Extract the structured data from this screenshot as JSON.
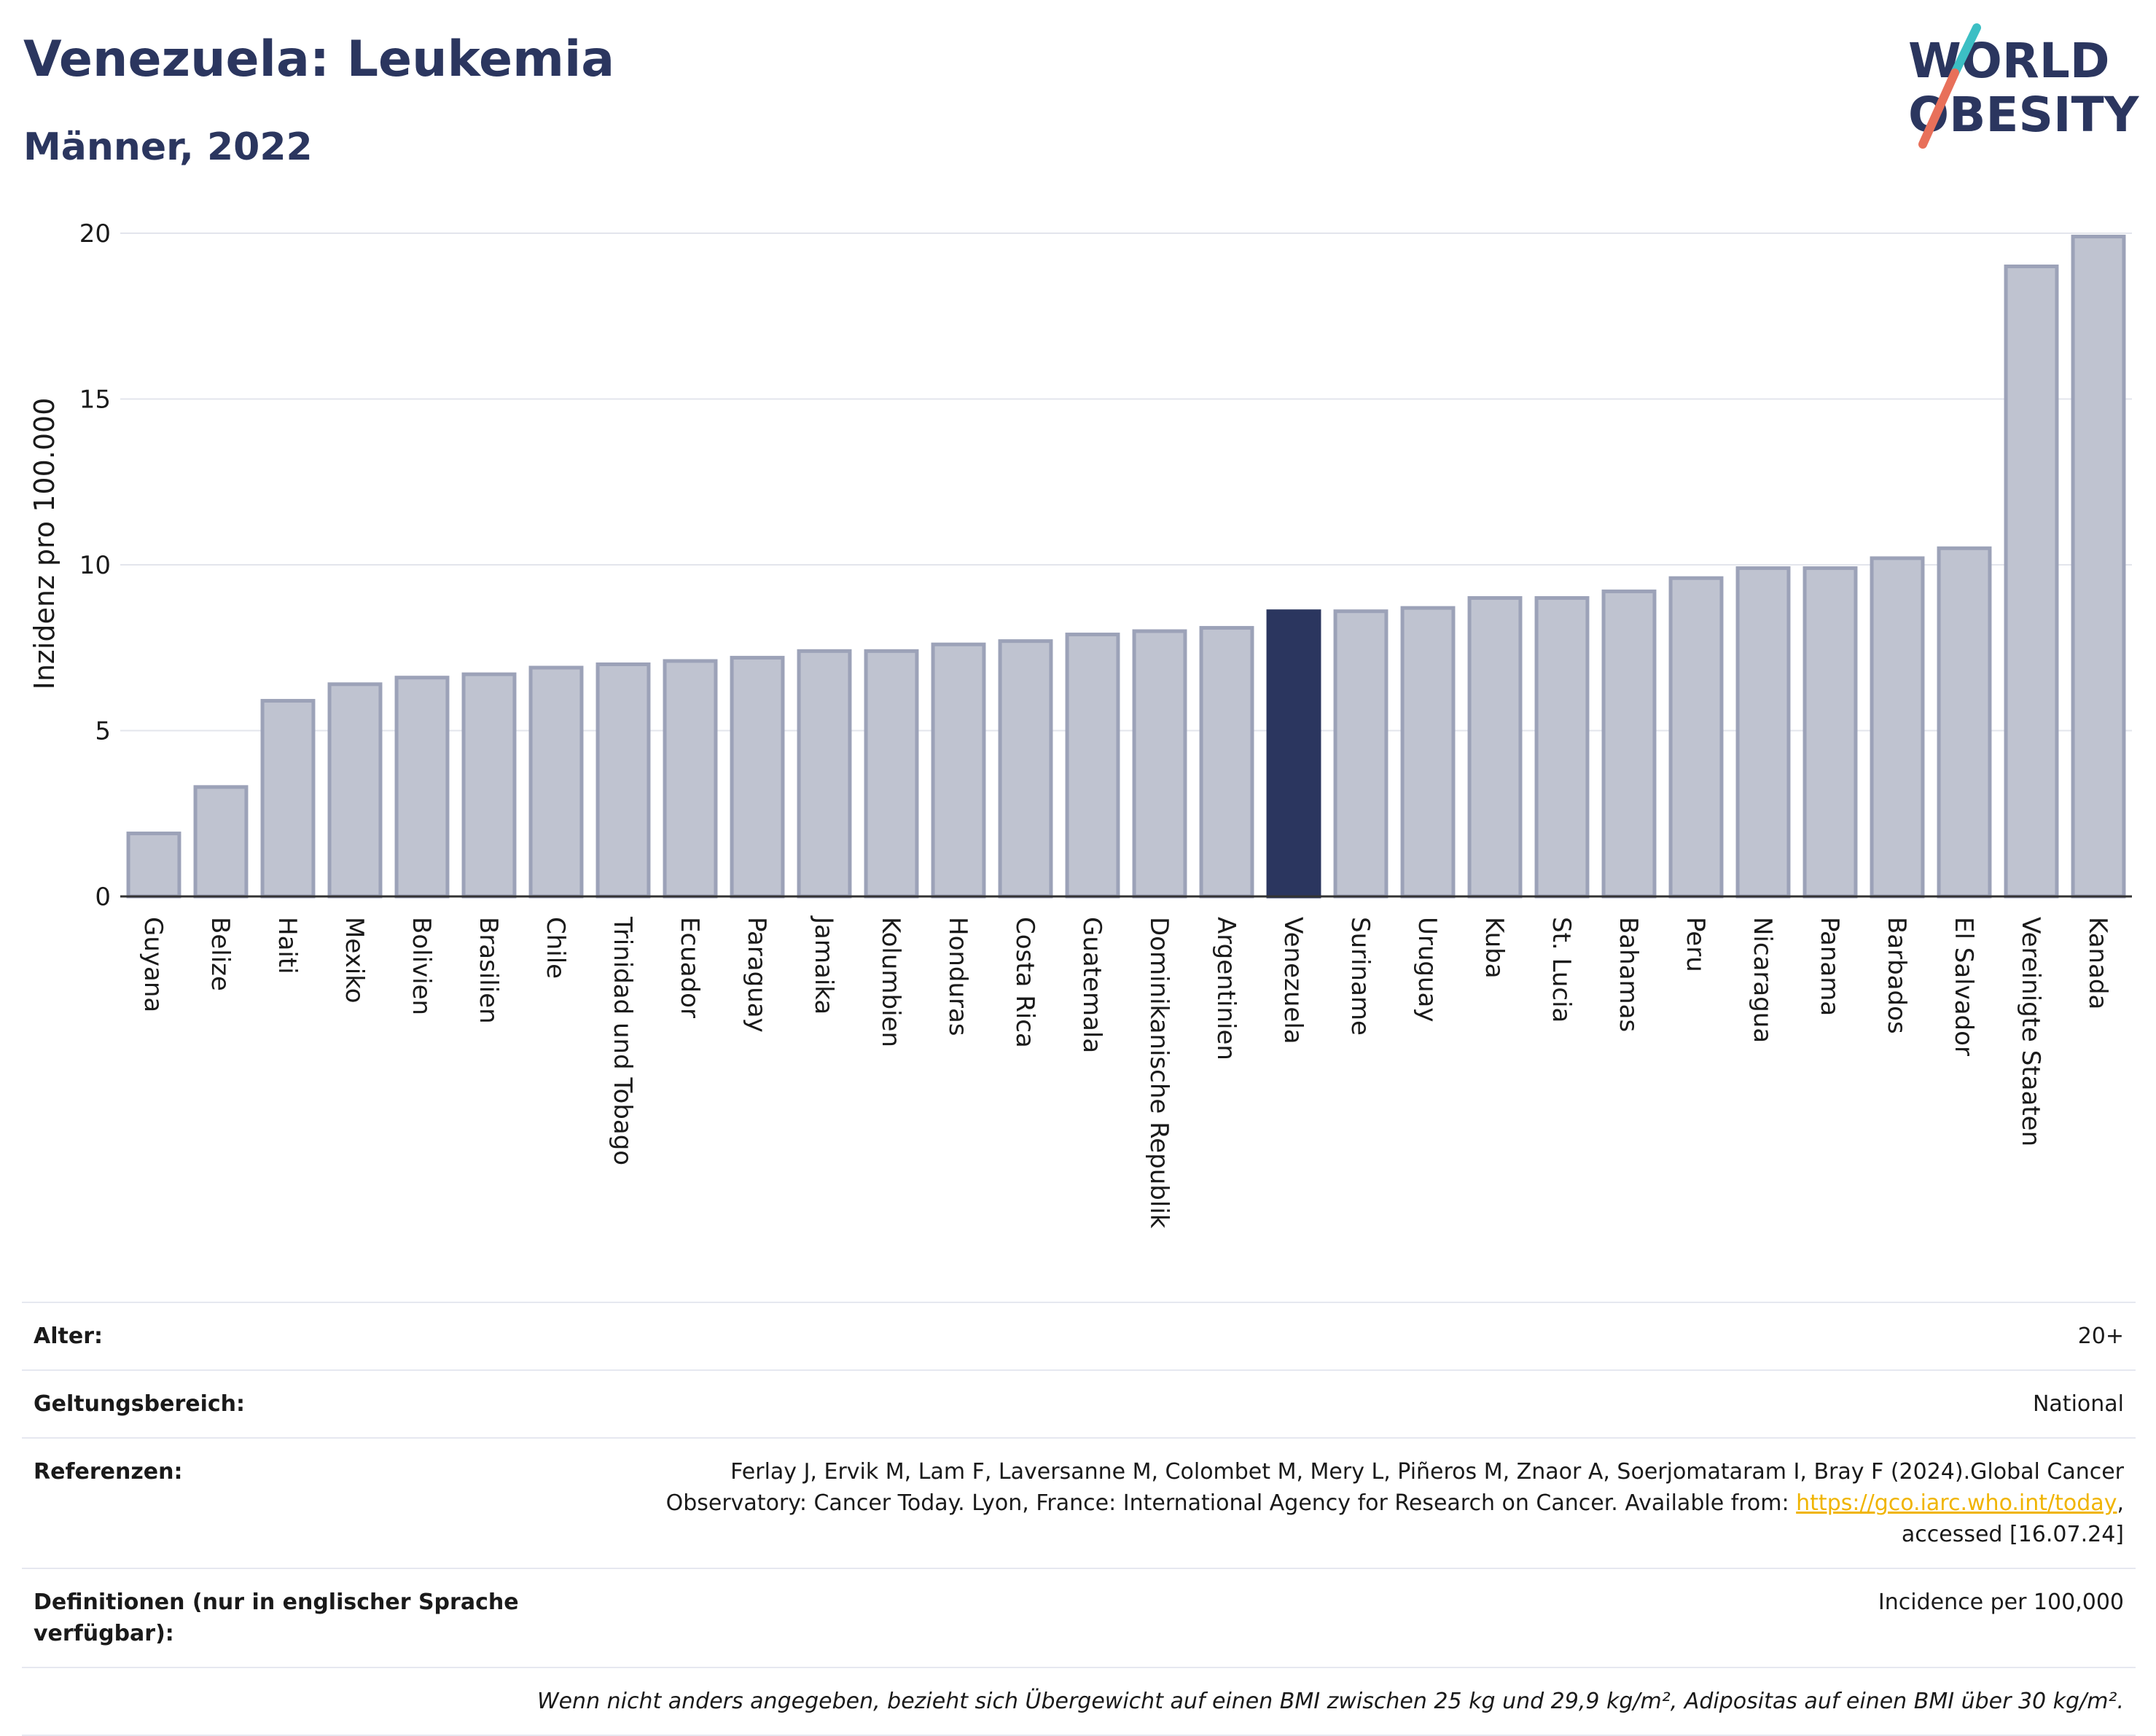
{
  "header": {
    "title": "Venezuela: Leukemia",
    "subtitle": "Männer, 2022"
  },
  "logo": {
    "line1": "WORLD",
    "line2": "OBESITY"
  },
  "colors": {
    "highlight_bar": "#2b365f",
    "other_bars": "#bfc3d0",
    "other_bar_border": "#9ca2b8",
    "title": "#2b365f",
    "link": "#f0b400"
  },
  "chart_data": {
    "type": "bar",
    "ylabel": "Inzidenz pro 100.000",
    "ylim": [
      0,
      20
    ],
    "yticks": [
      0,
      5,
      10,
      15,
      20
    ],
    "grid": true,
    "highlight": "Venezuela",
    "categories": [
      "Guyana",
      "Belize",
      "Haiti",
      "Mexiko",
      "Bolivien",
      "Brasilien",
      "Chile",
      "Trinidad und Tobago",
      "Ecuador",
      "Paraguay",
      "Jamaika",
      "Kolumbien",
      "Honduras",
      "Costa Rica",
      "Guatemala",
      "Dominikanische Republik",
      "Argentinien",
      "Venezuela",
      "Suriname",
      "Uruguay",
      "Kuba",
      "St. Lucia",
      "Bahamas",
      "Peru",
      "Nicaragua",
      "Panama",
      "Barbados",
      "El Salvador",
      "Vereinigte Staaten",
      "Kanada"
    ],
    "values": [
      1.9,
      3.3,
      5.9,
      6.4,
      6.6,
      6.7,
      6.9,
      7.0,
      7.1,
      7.2,
      7.4,
      7.4,
      7.6,
      7.7,
      7.9,
      8.0,
      8.1,
      8.6,
      8.6,
      8.7,
      9.0,
      9.0,
      9.2,
      9.6,
      9.9,
      9.9,
      10.2,
      10.5,
      19.0,
      19.9
    ]
  },
  "info": {
    "rows": [
      {
        "key": "Alter:",
        "value": "20+"
      },
      {
        "key": "Geltungsbereich:",
        "value": "National"
      },
      {
        "key": "Referenzen:",
        "value_pre": "Ferlay J, Ervik M, Lam F, Laversanne M, Colombet M, Mery L, Piñeros M, Znaor A, Soerjomataram I, Bray F (2024).Global Cancer Observatory: Cancer Today. Lyon, France: International Agency for Research on Cancer. Available from: ",
        "link": "https://gco.iarc.who.int/today",
        "value_post": ", accessed [16.07.24]"
      },
      {
        "key": "Definitionen (nur in englischer Sprache verfügbar):",
        "value": "Incidence per 100,000"
      }
    ],
    "note": "Wenn nicht anders angegeben, bezieht sich Übergewicht auf einen BMI zwischen 25 kg und 29,9 kg/m², Adipositas auf einen BMI über 30 kg/m²."
  }
}
